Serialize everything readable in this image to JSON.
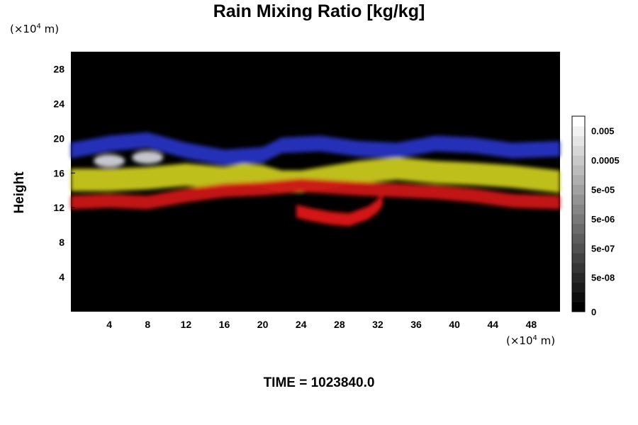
{
  "chart_data": {
    "type": "heatmap",
    "title": "Rain Mixing Ratio [kg/kg]",
    "ylabel": "Height",
    "xlabel": "",
    "x_unit_prefix": "(×10",
    "x_unit_exp": "4",
    "x_unit_suffix": " m)",
    "y_unit_prefix": "(×10",
    "y_unit_exp": "4",
    "y_unit_suffix": " m)",
    "xlim": [
      0,
      51
    ],
    "ylim": [
      0,
      30
    ],
    "x_ticks": [
      4,
      8,
      12,
      16,
      20,
      24,
      28,
      32,
      36,
      40,
      44,
      48
    ],
    "y_ticks": [
      4,
      8,
      12,
      16,
      20,
      24,
      28
    ],
    "background_color": "#000000",
    "colorbar": {
      "levels": 20,
      "tick_labels": [
        "0",
        "5e-08",
        "5e-07",
        "5e-06",
        "5e-05",
        "0.0005",
        "0.005"
      ],
      "tick_levels": [
        0,
        3,
        6,
        9,
        12,
        15,
        18
      ]
    },
    "layers": [
      {
        "name": "top",
        "color": "#2633c2",
        "points": [
          [
            0,
            18.6
          ],
          [
            4,
            19.4
          ],
          [
            8,
            19.8
          ],
          [
            12,
            18.6
          ],
          [
            14,
            18.2
          ],
          [
            16,
            17.8
          ],
          [
            20,
            18.1
          ],
          [
            22,
            19.2
          ],
          [
            26,
            19.4
          ],
          [
            30,
            18.8
          ],
          [
            34,
            18.6
          ],
          [
            38,
            19.4
          ],
          [
            42,
            19.2
          ],
          [
            46,
            18.6
          ],
          [
            51,
            18.8
          ]
        ],
        "thickness": 1.8
      },
      {
        "name": "upper",
        "color": "#c9c91a",
        "points": [
          [
            0,
            15.2
          ],
          [
            4,
            15.2
          ],
          [
            8,
            15.4
          ],
          [
            12,
            15.8
          ],
          [
            16,
            15.4
          ],
          [
            18,
            15.8
          ],
          [
            20,
            15.6
          ],
          [
            22,
            15.0
          ],
          [
            24,
            15.0
          ],
          [
            30,
            16.1
          ],
          [
            34,
            16.5
          ],
          [
            38,
            16.1
          ],
          [
            42,
            15.9
          ],
          [
            46,
            15.6
          ],
          [
            51,
            15.0
          ]
        ],
        "thickness": 2.6
      },
      {
        "name": "middle",
        "color": "#cc1515",
        "points": [
          [
            0,
            12.6
          ],
          [
            4,
            12.8
          ],
          [
            8,
            12.6
          ],
          [
            12,
            13.4
          ],
          [
            16,
            14.0
          ],
          [
            20,
            14.2
          ],
          [
            24,
            14.6
          ],
          [
            30,
            14.2
          ],
          [
            34,
            14.0
          ],
          [
            38,
            13.8
          ],
          [
            42,
            13.4
          ],
          [
            46,
            12.8
          ],
          [
            51,
            12.6
          ]
        ],
        "thickness": 1.6
      },
      {
        "name": "lower",
        "color": "#e01818",
        "points": [
          [
            23.5,
            11.6
          ],
          [
            25,
            11.2
          ],
          [
            27,
            10.8
          ],
          [
            29,
            10.6
          ],
          [
            31,
            11.4
          ],
          [
            32,
            12.2
          ],
          [
            32.5,
            13.0
          ]
        ],
        "thickness": 1.5
      }
    ],
    "highlight_color": "#e8e8f0"
  },
  "footer": {
    "time_label": "TIME = 1023840.0"
  }
}
